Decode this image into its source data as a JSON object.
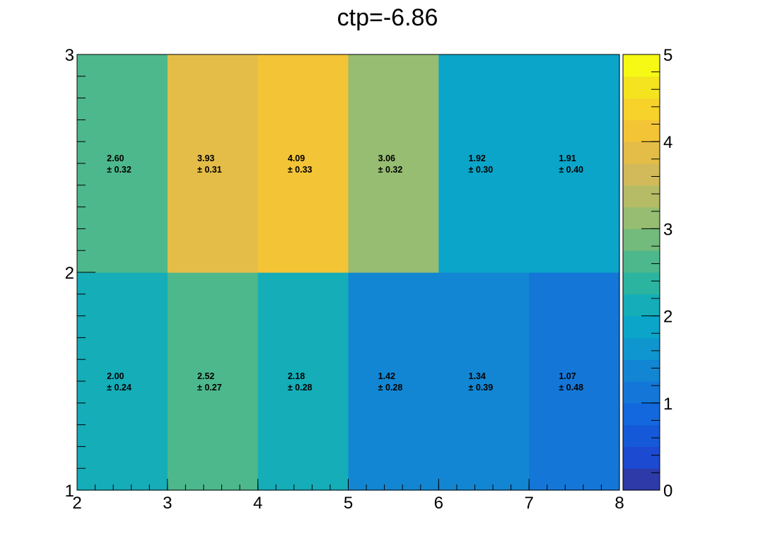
{
  "chart_data": {
    "type": "heatmap",
    "title": "ctp=-6.86",
    "x_edges": [
      2,
      3,
      4,
      5,
      6,
      7,
      8
    ],
    "y_edges": [
      1,
      2,
      3
    ],
    "xlim": [
      2,
      8
    ],
    "ylim": [
      1,
      3
    ],
    "x_ticks": [
      2,
      3,
      4,
      5,
      6,
      7,
      8
    ],
    "y_ticks": [
      1,
      2,
      3
    ],
    "z_range": [
      0,
      5
    ],
    "z_ticks": [
      0,
      1,
      2,
      3,
      4,
      5
    ],
    "colormap": "parula-like",
    "cells": [
      [
        {
          "value": "2.00",
          "error": "0.24"
        },
        {
          "value": "2.52",
          "error": "0.27"
        },
        {
          "value": "2.18",
          "error": "0.28"
        },
        {
          "value": "1.42",
          "error": "0.28"
        },
        {
          "value": "1.34",
          "error": "0.39"
        },
        {
          "value": "1.07",
          "error": "0.48"
        }
      ],
      [
        {
          "value": "2.60",
          "error": "0.32"
        },
        {
          "value": "3.93",
          "error": "0.31"
        },
        {
          "value": "4.09",
          "error": "0.33"
        },
        {
          "value": "3.06",
          "error": "0.32"
        },
        {
          "value": "1.92",
          "error": "0.30"
        },
        {
          "value": "1.91",
          "error": "0.40"
        }
      ]
    ],
    "palette": [
      "#2d3aa8",
      "#1c4ad0",
      "#1559d8",
      "#1268dc",
      "#1477d8",
      "#1286d3",
      "#0f96cf",
      "#0ba5c9",
      "#14adb8",
      "#2bb49f",
      "#4db88c",
      "#72bb7c",
      "#96bd72",
      "#b6bc66",
      "#d2ba5a",
      "#e4bd49",
      "#f4c437",
      "#f6d22a",
      "#f4e41f",
      "#f5f914"
    ]
  }
}
